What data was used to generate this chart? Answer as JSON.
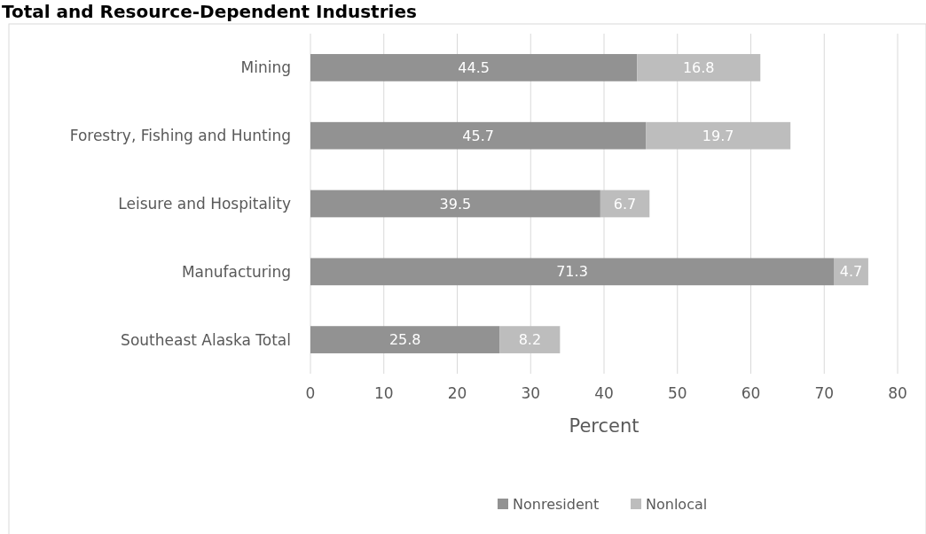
{
  "chart_data": {
    "type": "bar",
    "title": "Total and Resource-Dependent Industries",
    "orientation": "horizontal",
    "stacked": true,
    "categories": [
      "Mining",
      "Forestry, Fishing and Hunting",
      "Leisure and Hospitality",
      "Manufacturing",
      "Southeast Alaska Total"
    ],
    "series": [
      {
        "name": "Nonresident",
        "color": "#929292",
        "values": [
          44.5,
          45.7,
          39.5,
          71.3,
          25.8
        ]
      },
      {
        "name": "Nonlocal",
        "color": "#bdbdbd",
        "values": [
          16.8,
          19.7,
          6.7,
          4.7,
          8.2
        ]
      }
    ],
    "xlim": [
      0,
      80
    ],
    "xticks": [
      0,
      10,
      20,
      30,
      40,
      50,
      60,
      70,
      80
    ],
    "xlabel": "Percent",
    "grid": "x",
    "legend": "bottom",
    "data_labels": true
  }
}
